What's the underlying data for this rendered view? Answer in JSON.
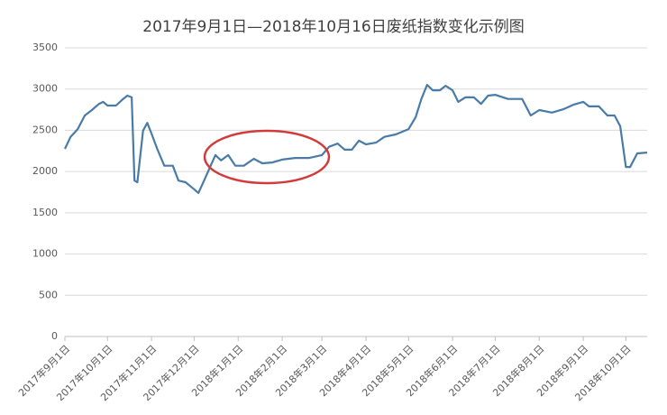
{
  "chart_data": {
    "type": "line",
    "title": "2017年9月1日—2018年10月16日废纸指数变化示例图",
    "x": [
      "2017-09-01",
      "2017-09-05",
      "2017-09-10",
      "2017-09-15",
      "2017-09-20",
      "2017-09-25",
      "2017-09-28",
      "2017-10-01",
      "2017-10-07",
      "2017-10-12",
      "2017-10-15",
      "2017-10-18",
      "2017-10-20",
      "2017-10-22",
      "2017-10-26",
      "2017-10-29",
      "2017-11-01",
      "2017-11-05",
      "2017-11-10",
      "2017-11-16",
      "2017-11-20",
      "2017-11-25",
      "2017-12-01",
      "2017-12-04",
      "2017-12-08",
      "2017-12-12",
      "2017-12-16",
      "2017-12-20",
      "2017-12-25",
      "2017-12-30",
      "2018-01-05",
      "2018-01-12",
      "2018-01-18",
      "2018-01-25",
      "2018-02-01",
      "2018-02-10",
      "2018-02-20",
      "2018-03-01",
      "2018-03-06",
      "2018-03-12",
      "2018-03-17",
      "2018-03-22",
      "2018-03-27",
      "2018-04-01",
      "2018-04-08",
      "2018-04-14",
      "2018-04-22",
      "2018-05-01",
      "2018-05-06",
      "2018-05-10",
      "2018-05-14",
      "2018-05-18",
      "2018-05-23",
      "2018-05-27",
      "2018-06-01",
      "2018-06-05",
      "2018-06-10",
      "2018-06-16",
      "2018-06-21",
      "2018-06-26",
      "2018-07-01",
      "2018-07-10",
      "2018-07-20",
      "2018-07-26",
      "2018-08-01",
      "2018-08-10",
      "2018-08-18",
      "2018-08-25",
      "2018-09-01",
      "2018-09-05",
      "2018-09-12",
      "2018-09-18",
      "2018-09-23",
      "2018-09-27",
      "2018-10-01",
      "2018-10-04",
      "2018-10-09",
      "2018-10-16"
    ],
    "series": [
      {
        "name": "废纸指数",
        "color": "#4a7ba7",
        "values": [
          2275,
          2420,
          2515,
          2680,
          2745,
          2820,
          2845,
          2800,
          2800,
          2880,
          2920,
          2900,
          1890,
          1870,
          2495,
          2590,
          2460,
          2275,
          2070,
          2070,
          1890,
          1870,
          1785,
          1740,
          1890,
          2045,
          2200,
          2135,
          2200,
          2070,
          2070,
          2155,
          2100,
          2110,
          2145,
          2165,
          2165,
          2200,
          2300,
          2340,
          2265,
          2265,
          2375,
          2330,
          2350,
          2420,
          2450,
          2515,
          2660,
          2880,
          3050,
          2985,
          2985,
          3040,
          2985,
          2845,
          2900,
          2900,
          2820,
          2920,
          2930,
          2880,
          2880,
          2680,
          2745,
          2715,
          2755,
          2810,
          2845,
          2790,
          2790,
          2680,
          2680,
          2550,
          2055,
          2055,
          2220,
          2230
        ]
      }
    ],
    "xlim": [
      "2017-09-01",
      "2018-10-16"
    ],
    "xticks": [
      {
        "value": "2017-09-01",
        "label": "2017年9月1日"
      },
      {
        "value": "2017-10-01",
        "label": "2017年10月1日"
      },
      {
        "value": "2017-11-01",
        "label": "2017年11月1日"
      },
      {
        "value": "2017-12-01",
        "label": "2017年12月1日"
      },
      {
        "value": "2018-01-01",
        "label": "2018年1月1日"
      },
      {
        "value": "2018-02-01",
        "label": "2018年2月1日"
      },
      {
        "value": "2018-03-01",
        "label": "2018年3月1日"
      },
      {
        "value": "2018-04-01",
        "label": "2018年4月1日"
      },
      {
        "value": "2018-05-01",
        "label": "2018年5月1日"
      },
      {
        "value": "2018-06-01",
        "label": "2018年6月1日"
      },
      {
        "value": "2018-07-01",
        "label": "2018年7月1日"
      },
      {
        "value": "2018-08-01",
        "label": "2018年8月1日"
      },
      {
        "value": "2018-09-01",
        "label": "2018年9月1日"
      },
      {
        "value": "2018-10-01",
        "label": "2018年10月1日"
      }
    ],
    "ylim": [
      0,
      3500
    ],
    "yticks": [
      0,
      500,
      1000,
      1500,
      2000,
      2500,
      3000,
      3500
    ],
    "grid": true
  }
}
